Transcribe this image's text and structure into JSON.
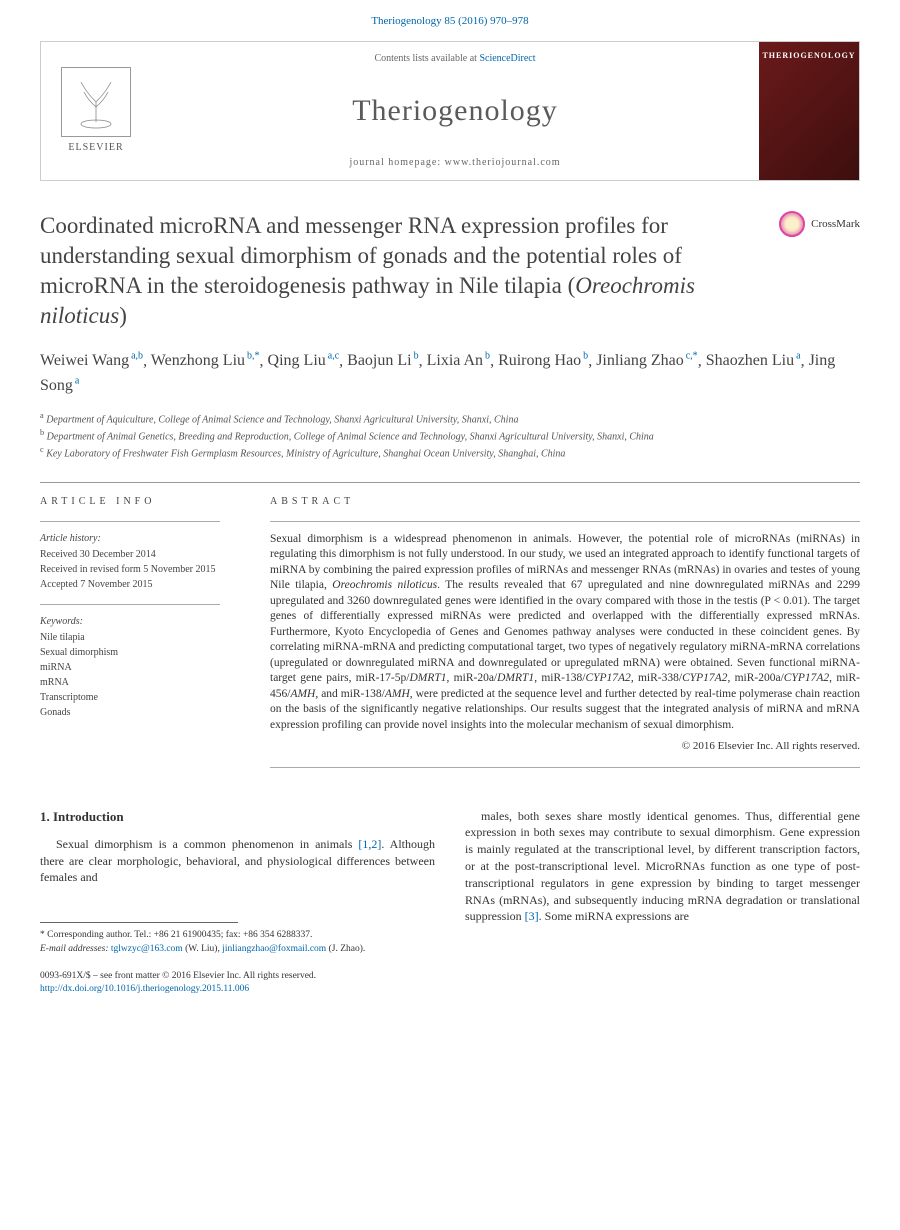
{
  "header": {
    "citation": "Theriogenology 85 (2016) 970–978"
  },
  "journalBox": {
    "elsevier": "ELSEVIER",
    "contentsPrefix": "Contents lists available at ",
    "contentsLink": "ScienceDirect",
    "journalName": "Theriogenology",
    "homepagePrefix": "journal homepage: ",
    "homepageUrl": "www.theriojournal.com",
    "coverTitle": "THERIOGENOLOGY"
  },
  "crossmark": "CrossMark",
  "title": "Coordinated microRNA and messenger RNA expression profiles for understanding sexual dimorphism of gonads and the potential roles of microRNA in the steroidogenesis pathway in Nile tilapia (",
  "titleSpecies": "Oreochromis niloticus",
  "titleEnd": ")",
  "authors": [
    {
      "name": "Weiwei Wang",
      "aff": "a,b"
    },
    {
      "name": "Wenzhong Liu",
      "aff": "b,*"
    },
    {
      "name": "Qing Liu",
      "aff": "a,c"
    },
    {
      "name": "Baojun Li",
      "aff": "b"
    },
    {
      "name": "Lixia An",
      "aff": "b"
    },
    {
      "name": "Ruirong Hao",
      "aff": "b"
    },
    {
      "name": "Jinliang Zhao",
      "aff": "c,*"
    },
    {
      "name": "Shaozhen Liu",
      "aff": "a"
    },
    {
      "name": "Jing Song",
      "aff": "a"
    }
  ],
  "affiliations": [
    {
      "sup": "a",
      "text": "Department of Aquiculture, College of Animal Science and Technology, Shanxi Agricultural University, Shanxi, China"
    },
    {
      "sup": "b",
      "text": "Department of Animal Genetics, Breeding and Reproduction, College of Animal Science and Technology, Shanxi Agricultural University, Shanxi, China"
    },
    {
      "sup": "c",
      "text": "Key Laboratory of Freshwater Fish Germplasm Resources, Ministry of Agriculture, Shanghai Ocean University, Shanghai, China"
    }
  ],
  "info": {
    "heading": "ARTICLE INFO",
    "historyLabel": "Article history:",
    "history": [
      "Received 30 December 2014",
      "Received in revised form 5 November 2015",
      "Accepted 7 November 2015"
    ],
    "keywordsLabel": "Keywords:",
    "keywords": [
      "Nile tilapia",
      "Sexual dimorphism",
      "miRNA",
      "mRNA",
      "Transcriptome",
      "Gonads"
    ]
  },
  "abstract": {
    "heading": "ABSTRACT",
    "text1": "Sexual dimorphism is a widespread phenomenon in animals. However, the potential role of microRNAs (miRNAs) in regulating this dimorphism is not fully understood. In our study, we used an integrated approach to identify functional targets of miRNA by combining the paired expression profiles of miRNAs and messenger RNAs (mRNAs) in ovaries and testes of young Nile tilapia, ",
    "species": "Oreochromis niloticus",
    "text2": ". The results revealed that 67 upregulated and nine downregulated miRNAs and 2299 upregulated and 3260 downregulated genes were identified in the ovary compared with those in the testis (P < 0.01). The target genes of differentially expressed miRNAs were predicted and overlapped with the differentially expressed mRNAs. Furthermore, Kyoto Encyclopedia of Genes and Genomes pathway analyses were conducted in these coincident genes. By correlating miRNA-mRNA and predicting computational target, two types of negatively regulatory miRNA-mRNA correlations (upregulated or downregulated miRNA and downregulated or upregulated mRNA) were obtained. Seven functional miRNA-target gene pairs, miR-17-5p/",
    "gene1": "DMRT1",
    "text3": ", miR-20a/",
    "gene2": "DMRT1",
    "text4": ", miR-138/",
    "gene3": "CYP17A2",
    "text5": ", miR-338/",
    "gene4": "CYP17A2",
    "text6": ", miR-200a/",
    "gene5": "CYP17A2",
    "text7": ", miR-456/",
    "gene6": "AMH",
    "text8": ", and miR-138/",
    "gene7": "AMH",
    "text9": ", were predicted at the sequence level and further detected by real-time polymerase chain reaction on the basis of the significantly negative relationships. Our results suggest that the integrated analysis of miRNA and mRNA expression profiling can provide novel insights into the molecular mechanism of sexual dimorphism.",
    "copyright": "© 2016 Elsevier Inc. All rights reserved."
  },
  "intro": {
    "heading": "1. Introduction",
    "left": "Sexual dimorphism is a common phenomenon in animals ",
    "cite1": "[1,2]",
    "left2": ". Although there are clear morphologic, behavioral, and physiological differences between females and",
    "right": "males, both sexes share mostly identical genomes. Thus, differential gene expression in both sexes may contribute to sexual dimorphism. Gene expression is mainly regulated at the transcriptional level, by different transcription factors, or at the post-transcriptional level. MicroRNAs function as one type of post-transcriptional regulators in gene expression by binding to target messenger RNAs (mRNAs), and subsequently inducing mRNA degradation or translational suppression ",
    "cite2": "[3]",
    "right2": ". Some miRNA expressions are"
  },
  "footnotes": {
    "corresponding": "* Corresponding author. Tel.: +86 21 61900435; fax: +86 354 6288337.",
    "emailLabel": "E-mail addresses: ",
    "email1": "tglwzyc@163.com",
    "email1name": " (W. Liu), ",
    "email2": "jinliangzhao@foxmail.com",
    "email2name": " (J. Zhao)."
  },
  "bottom": {
    "issn": "0093-691X/$ – see front matter © 2016 Elsevier Inc. All rights reserved.",
    "doi": "http://dx.doi.org/10.1016/j.theriogenology.2015.11.006"
  }
}
